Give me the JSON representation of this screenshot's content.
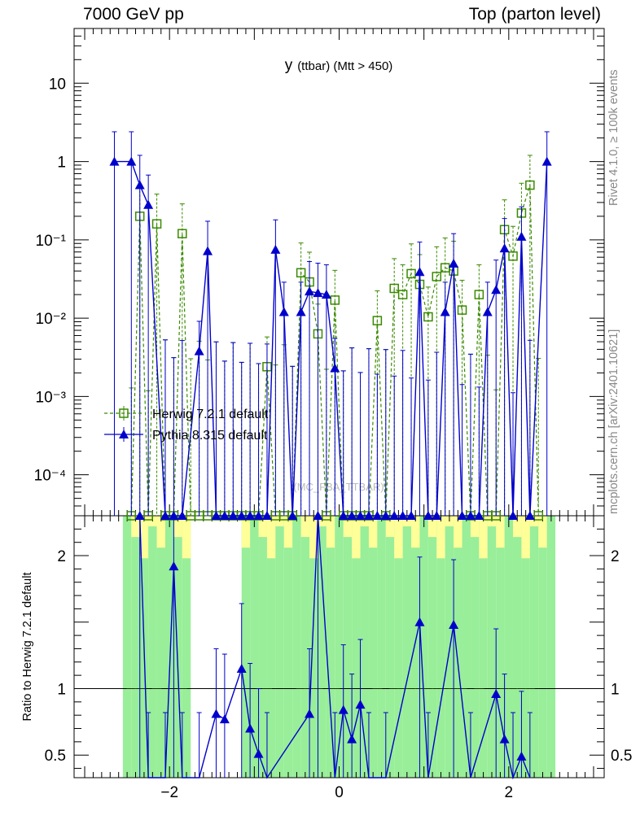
{
  "header": {
    "left": "7000 GeV pp",
    "right": "Top (parton level)"
  },
  "sidebar": {
    "rivet": "Rivet 4.1.0, ≥ 100k events",
    "mcplots": "mcplots.cern.ch [arXiv:2401.10621]"
  },
  "chart_data": {
    "type": "line",
    "title": "y",
    "title_suffix": "(ttbar) (Mtt > 450)",
    "watermark": "(MC_FBA_TTBAR)",
    "x_ticks": [
      {
        "value": -2,
        "label": "−2"
      },
      {
        "value": 0,
        "label": "0"
      },
      {
        "value": 2,
        "label": "2"
      }
    ],
    "xlim": [
      -3.125,
      3.125
    ],
    "main": {
      "yscale": "log",
      "ylim": [
        3e-05,
        50
      ],
      "ylabel": "",
      "y_ticks": [
        {
          "value": 10,
          "label": "10"
        },
        {
          "value": 1,
          "label": "1"
        },
        {
          "value": 0.1,
          "label": "10⁻¹"
        },
        {
          "value": 0.01,
          "label": "10⁻²"
        },
        {
          "value": 0.001,
          "label": "10⁻³"
        },
        {
          "value": 0.0001,
          "label": "10⁻⁴"
        }
      ],
      "series": [
        {
          "name": "Herwig 7.2.1 default",
          "color": "#3a8a00",
          "marker": "open-square",
          "style": "dashed",
          "points": [
            [
              -2.45,
              3e-05
            ],
            [
              -2.35,
              0.2
            ],
            [
              -2.25,
              3e-05
            ],
            [
              -2.15,
              0.16
            ],
            [
              -2.05,
              3e-05
            ],
            [
              -1.95,
              3e-05
            ],
            [
              -1.85,
              0.12
            ],
            [
              -1.75,
              3e-05
            ],
            [
              -1.65,
              3e-05
            ],
            [
              -1.55,
              3e-05
            ],
            [
              -1.45,
              3e-05
            ],
            [
              -1.35,
              3e-05
            ],
            [
              -1.25,
              3e-05
            ],
            [
              -1.15,
              3e-05
            ],
            [
              -1.05,
              3e-05
            ],
            [
              -0.95,
              3e-05
            ],
            [
              -0.85,
              0.0024
            ],
            [
              -0.75,
              3e-05
            ],
            [
              -0.65,
              3e-05
            ],
            [
              -0.55,
              3e-05
            ],
            [
              -0.45,
              0.038
            ],
            [
              -0.35,
              0.029
            ],
            [
              -0.25,
              0.0063
            ],
            [
              -0.15,
              3e-05
            ],
            [
              -0.05,
              0.017
            ],
            [
              0.05,
              3e-05
            ],
            [
              0.15,
              3e-05
            ],
            [
              0.25,
              3e-05
            ],
            [
              0.35,
              3e-05
            ],
            [
              0.45,
              0.0093
            ],
            [
              0.55,
              3e-05
            ],
            [
              0.65,
              0.024
            ],
            [
              0.75,
              0.02
            ],
            [
              0.85,
              0.037
            ],
            [
              0.95,
              0.027
            ],
            [
              1.05,
              0.0104
            ],
            [
              1.15,
              0.034
            ],
            [
              1.25,
              0.044
            ],
            [
              1.35,
              0.04
            ],
            [
              1.45,
              0.0127
            ],
            [
              1.55,
              3e-05
            ],
            [
              1.65,
              0.02
            ],
            [
              1.75,
              3e-05
            ],
            [
              1.85,
              3e-05
            ],
            [
              1.95,
              0.135
            ],
            [
              2.05,
              0.062
            ],
            [
              2.15,
              0.22
            ],
            [
              2.25,
              0.5
            ],
            [
              2.35,
              3e-05
            ]
          ],
          "ratio": [
            [
              -2.45,
              1.0
            ],
            [
              -2.35,
              1.0
            ],
            [
              -2.15,
              1.0
            ],
            [
              -1.85,
              1.0
            ],
            [
              -0.85,
              1.0
            ],
            [
              -0.45,
              1.0
            ],
            [
              -0.35,
              1.0
            ],
            [
              -0.25,
              1.0
            ],
            [
              -0.05,
              1.0
            ],
            [
              0.45,
              1.0
            ],
            [
              0.65,
              1.0
            ],
            [
              0.75,
              1.0
            ],
            [
              0.85,
              1.0
            ],
            [
              0.95,
              1.0
            ],
            [
              1.05,
              1.0
            ],
            [
              1.15,
              1.0
            ],
            [
              1.25,
              1.0
            ],
            [
              1.35,
              1.0
            ],
            [
              1.45,
              1.0
            ],
            [
              1.65,
              1.0
            ],
            [
              1.95,
              1.0
            ],
            [
              2.05,
              1.0
            ],
            [
              2.15,
              1.0
            ],
            [
              2.25,
              1.0
            ]
          ]
        },
        {
          "name": "Pythia 8.315 default",
          "color": "#0000cc",
          "marker": "filled-triangle",
          "style": "solid",
          "points": [
            [
              -2.65,
              1.0
            ],
            [
              -2.45,
              1.0
            ],
            [
              -2.35,
              0.5
            ],
            [
              -2.25,
              0.28
            ],
            [
              -2.05,
              3e-05
            ],
            [
              -1.95,
              3e-05
            ],
            [
              -1.85,
              3e-05
            ],
            [
              -1.65,
              0.0038
            ],
            [
              -1.55,
              0.072
            ],
            [
              -1.45,
              3e-05
            ],
            [
              -1.35,
              3e-05
            ],
            [
              -1.25,
              3e-05
            ],
            [
              -1.15,
              3e-05
            ],
            [
              -1.05,
              3e-05
            ],
            [
              -0.95,
              3e-05
            ],
            [
              -0.85,
              3e-05
            ],
            [
              -0.75,
              0.075
            ],
            [
              -0.65,
              0.012
            ],
            [
              -0.55,
              3e-05
            ],
            [
              -0.45,
              0.012
            ],
            [
              -0.35,
              0.022
            ],
            [
              -0.25,
              0.021
            ],
            [
              -0.15,
              0.02
            ],
            [
              -0.05,
              0.0023
            ],
            [
              0.05,
              3e-05
            ],
            [
              0.15,
              3e-05
            ],
            [
              0.25,
              3e-05
            ],
            [
              0.35,
              3e-05
            ],
            [
              0.45,
              3e-05
            ],
            [
              0.55,
              3e-05
            ],
            [
              0.65,
              3e-05
            ],
            [
              0.75,
              3e-05
            ],
            [
              0.85,
              3e-05
            ],
            [
              0.95,
              0.039
            ],
            [
              1.05,
              3e-05
            ],
            [
              1.15,
              3e-05
            ],
            [
              1.25,
              0.012
            ],
            [
              1.35,
              0.05
            ],
            [
              1.45,
              3e-05
            ],
            [
              1.55,
              3e-05
            ],
            [
              1.65,
              3e-05
            ],
            [
              1.75,
              0.012
            ],
            [
              1.85,
              0.023
            ],
            [
              1.95,
              0.078
            ],
            [
              2.05,
              3e-05
            ],
            [
              2.15,
              0.11
            ],
            [
              2.25,
              3e-05
            ],
            [
              2.45,
              1.0
            ]
          ],
          "ratio": [
            [
              -2.35,
              2.3
            ],
            [
              -2.25,
              0.3
            ],
            [
              -2.05,
              0.3
            ],
            [
              -1.95,
              1.92
            ],
            [
              -1.85,
              0.3
            ],
            [
              -1.65,
              0.3
            ],
            [
              -1.45,
              0.81
            ],
            [
              -1.35,
              0.77
            ],
            [
              -1.15,
              1.15
            ],
            [
              -1.05,
              0.7
            ],
            [
              -0.95,
              0.51
            ],
            [
              -0.85,
              0.3
            ],
            [
              -0.35,
              0.81
            ],
            [
              -0.25,
              2.3
            ],
            [
              -0.05,
              0.3
            ],
            [
              0.05,
              0.84
            ],
            [
              0.15,
              0.62
            ],
            [
              0.25,
              0.88
            ],
            [
              0.35,
              0.3
            ],
            [
              0.55,
              0.3
            ],
            [
              0.95,
              1.5
            ],
            [
              1.05,
              0.3
            ],
            [
              1.35,
              1.48
            ],
            [
              1.55,
              0.3
            ],
            [
              1.85,
              0.96
            ],
            [
              1.95,
              0.62
            ],
            [
              2.05,
              0.3
            ],
            [
              2.15,
              0.49
            ],
            [
              2.25,
              0.3
            ]
          ]
        }
      ]
    },
    "ratio_panel": {
      "ylabel": "Ratio to Herwig 7.2.1 default",
      "ylim": [
        0.33,
        2.3
      ],
      "y_ticks": [
        {
          "value": 2,
          "label": "2"
        },
        {
          "value": 1,
          "label": "1"
        },
        {
          "value": 0.5,
          "label": "0.5"
        }
      ],
      "reference": 1,
      "band_bins_x": [
        -2.55,
        1.25
      ],
      "band_bins_x_excluded": [
        [
          -1.75,
          -1.15
        ]
      ]
    }
  }
}
